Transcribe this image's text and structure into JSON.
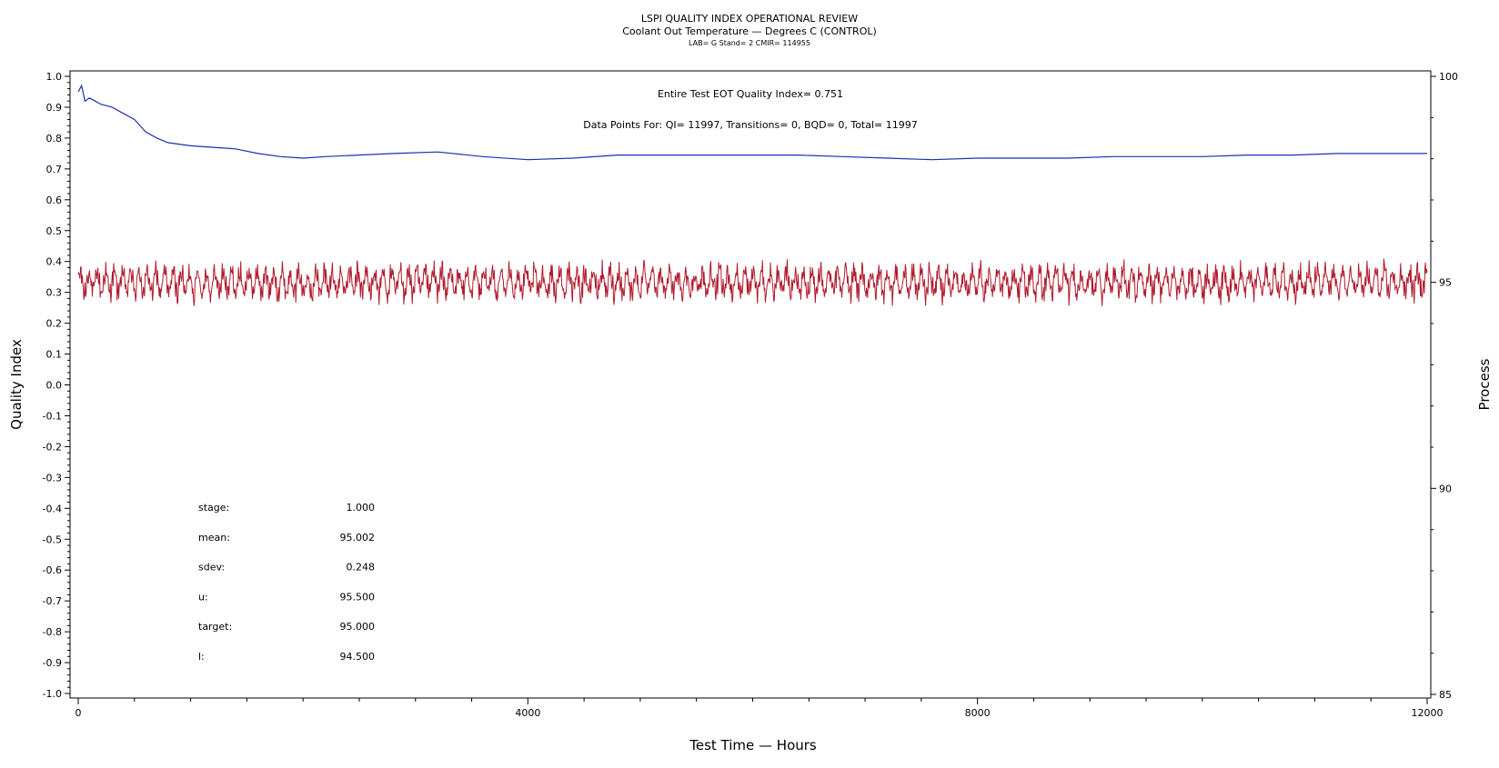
{
  "header": {
    "title": "LSPI QUALITY INDEX OPERATIONAL REVIEW",
    "subtitle": "Coolant Out Temperature — Degrees C (CONTROL)",
    "subsubtitle": "LAB= G Stand= 2 CMIR= 114955"
  },
  "annotations": {
    "quality_index": "Entire Test EOT Quality Index=   0.751",
    "data_points": "Data Points For: QI= 11997, Transitions=     0, BQD=     0, Total= 11997"
  },
  "stats": [
    {
      "label": "stage:",
      "value": "1.000"
    },
    {
      "label": "mean:",
      "value": "95.002"
    },
    {
      "label": "sdev:",
      "value": "0.248"
    },
    {
      "label": "u:",
      "value": "95.500"
    },
    {
      "label": "target:",
      "value": "95.000"
    },
    {
      "label": "l:",
      "value": "94.500"
    }
  ],
  "colors": {
    "quality_index_line": "#1f2db4",
    "process_line": "#b01c2e",
    "axis": "#000000"
  },
  "chart_data": {
    "type": "line",
    "xlabel": "Test Time — Hours",
    "ylabel": "Quality Index",
    "y2label": "Process",
    "xlim": [
      0,
      12000
    ],
    "ylim": [
      -1.0,
      1.0
    ],
    "y2lim": [
      85,
      100
    ],
    "x_ticks": [
      0,
      4000,
      8000,
      12000
    ],
    "y_ticks": [
      "1.0",
      "0.9",
      "0.8",
      "0.7",
      "0.6",
      "0.5",
      "0.4",
      "0.3",
      "0.2",
      "0.1",
      "0.0",
      "-0.1",
      "-0.2",
      "-0.3",
      "-0.4",
      "-0.5",
      "-0.6",
      "-0.7",
      "-0.8",
      "-0.9",
      "-1.0"
    ],
    "y2_ticks": [
      85,
      90,
      95,
      100
    ],
    "grid": false,
    "series": [
      {
        "axis": "left",
        "x": [
          0,
          30,
          60,
          100,
          150,
          200,
          300,
          400,
          500,
          600,
          700,
          800,
          1000,
          1200,
          1400,
          1600,
          1800,
          2000,
          2200,
          2500,
          2800,
          3200,
          3600,
          4000,
          4400,
          4800,
          5200,
          5600,
          6000,
          6400,
          6800,
          7200,
          7600,
          8000,
          8400,
          8800,
          9200,
          9600,
          10000,
          10400,
          10800,
          11200,
          11600,
          12000
        ],
        "y": [
          0.95,
          0.97,
          0.92,
          0.93,
          0.92,
          0.91,
          0.9,
          0.88,
          0.86,
          0.82,
          0.8,
          0.785,
          0.775,
          0.77,
          0.765,
          0.75,
          0.74,
          0.735,
          0.74,
          0.745,
          0.75,
          0.755,
          0.74,
          0.73,
          0.735,
          0.745,
          0.745,
          0.745,
          0.745,
          0.745,
          0.74,
          0.735,
          0.73,
          0.735,
          0.735,
          0.735,
          0.74,
          0.74,
          0.74,
          0.745,
          0.745,
          0.75,
          0.75,
          0.75
        ]
      },
      {
        "axis": "right",
        "mean": 95.002,
        "sdev": 0.248,
        "envelope_min": 94.3,
        "envelope_max": 95.85,
        "points": 11997
      }
    ]
  }
}
